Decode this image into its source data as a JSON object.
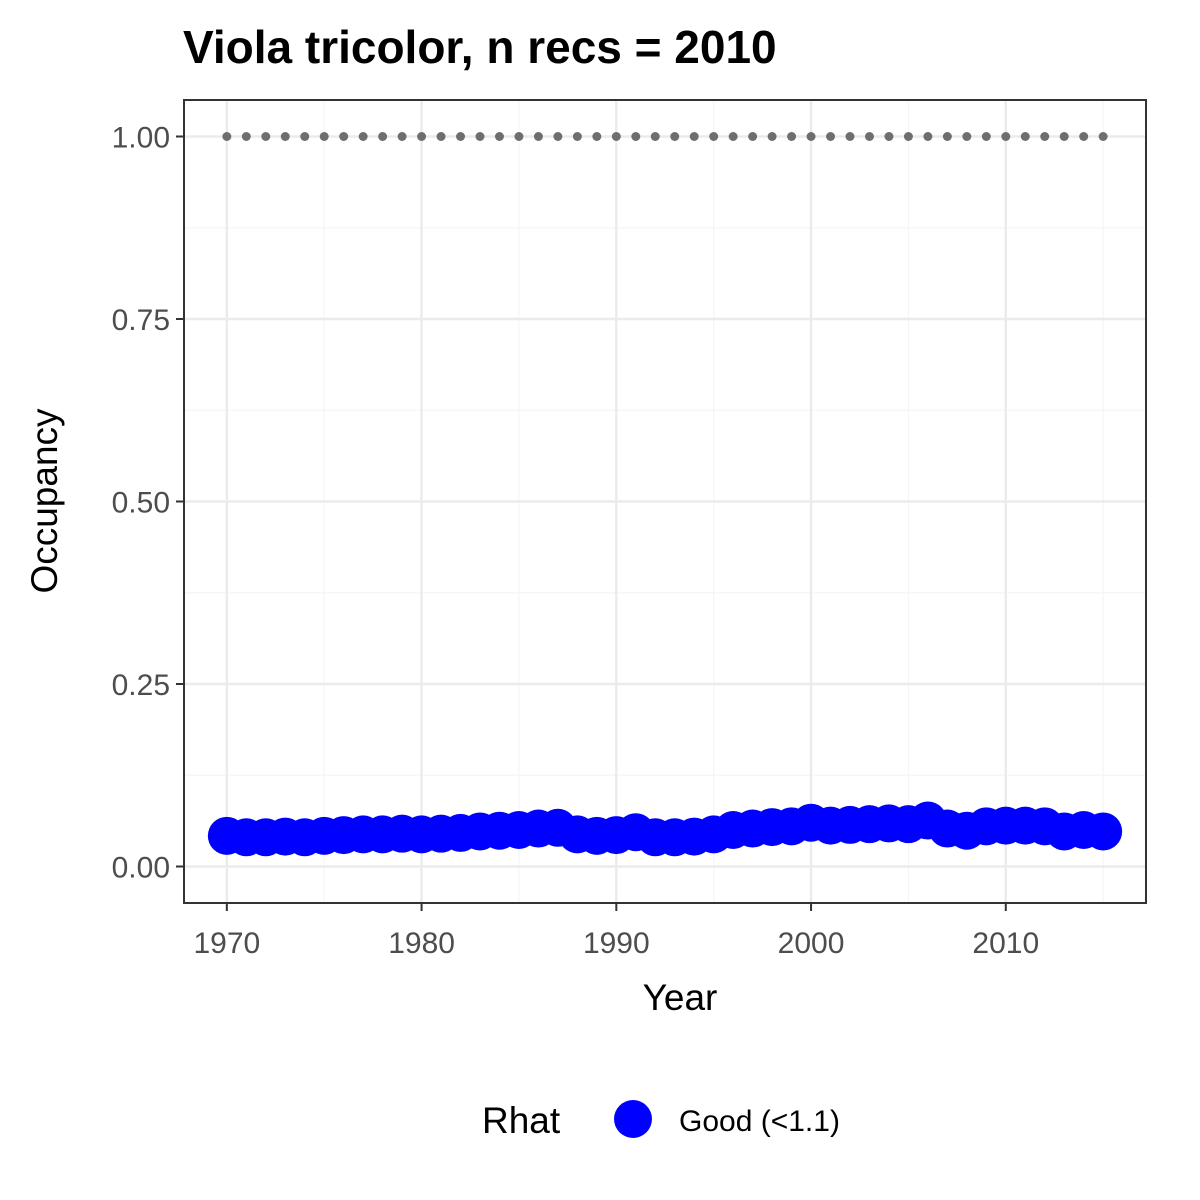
{
  "chart_data": {
    "type": "scatter",
    "title": "Viola tricolor, n recs = 2010",
    "xlabel": "Year",
    "ylabel": "Occupancy",
    "xlim": [
      1967.8,
      2017.2
    ],
    "ylim": [
      -0.05,
      1.05
    ],
    "x_ticks": [
      "1970",
      "1980",
      "1990",
      "2000",
      "2010"
    ],
    "y_ticks": [
      "0.00",
      "0.25",
      "0.50",
      "0.75",
      "1.00"
    ],
    "grid": true,
    "legend": {
      "title": "Rhat",
      "position": "bottom",
      "entries": [
        "Good (<1.1)"
      ]
    },
    "colors": {
      "good": "#0000ff",
      "dotted_series": "#6e6e6e",
      "panel_border": "#333333",
      "grid_major": "#ebebeb"
    },
    "series": [
      {
        "name": "Good (<1.1)",
        "x": [
          1970,
          1971,
          1972,
          1973,
          1974,
          1975,
          1976,
          1977,
          1978,
          1979,
          1980,
          1981,
          1982,
          1983,
          1984,
          1985,
          1986,
          1987,
          1988,
          1989,
          1990,
          1991,
          1992,
          1993,
          1994,
          1995,
          1996,
          1997,
          1998,
          1999,
          2000,
          2001,
          2002,
          2003,
          2004,
          2005,
          2006,
          2007,
          2008,
          2009,
          2010,
          2011,
          2012,
          2013,
          2014,
          2015
        ],
        "y": [
          0.042,
          0.04,
          0.04,
          0.041,
          0.04,
          0.042,
          0.043,
          0.044,
          0.044,
          0.045,
          0.044,
          0.045,
          0.046,
          0.048,
          0.049,
          0.05,
          0.052,
          0.053,
          0.044,
          0.042,
          0.043,
          0.047,
          0.04,
          0.04,
          0.041,
          0.044,
          0.05,
          0.052,
          0.054,
          0.055,
          0.06,
          0.056,
          0.057,
          0.058,
          0.059,
          0.058,
          0.063,
          0.052,
          0.049,
          0.055,
          0.056,
          0.056,
          0.055,
          0.048,
          0.05,
          0.048
        ]
      },
      {
        "name": "",
        "x": [
          1970,
          1971,
          1972,
          1973,
          1974,
          1975,
          1976,
          1977,
          1978,
          1979,
          1980,
          1981,
          1982,
          1983,
          1984,
          1985,
          1986,
          1987,
          1988,
          1989,
          1990,
          1991,
          1992,
          1993,
          1994,
          1995,
          1996,
          1997,
          1998,
          1999,
          2000,
          2001,
          2002,
          2003,
          2004,
          2005,
          2006,
          2007,
          2008,
          2009,
          2010,
          2011,
          2012,
          2013,
          2014,
          2015
        ],
        "y": [
          1,
          1,
          1,
          1,
          1,
          1,
          1,
          1,
          1,
          1,
          1,
          1,
          1,
          1,
          1,
          1,
          1,
          1,
          1,
          1,
          1,
          1,
          1,
          1,
          1,
          1,
          1,
          1,
          1,
          1,
          1,
          1,
          1,
          1,
          1,
          1,
          1,
          1,
          1,
          1,
          1,
          1,
          1,
          1,
          1,
          1
        ]
      }
    ]
  }
}
